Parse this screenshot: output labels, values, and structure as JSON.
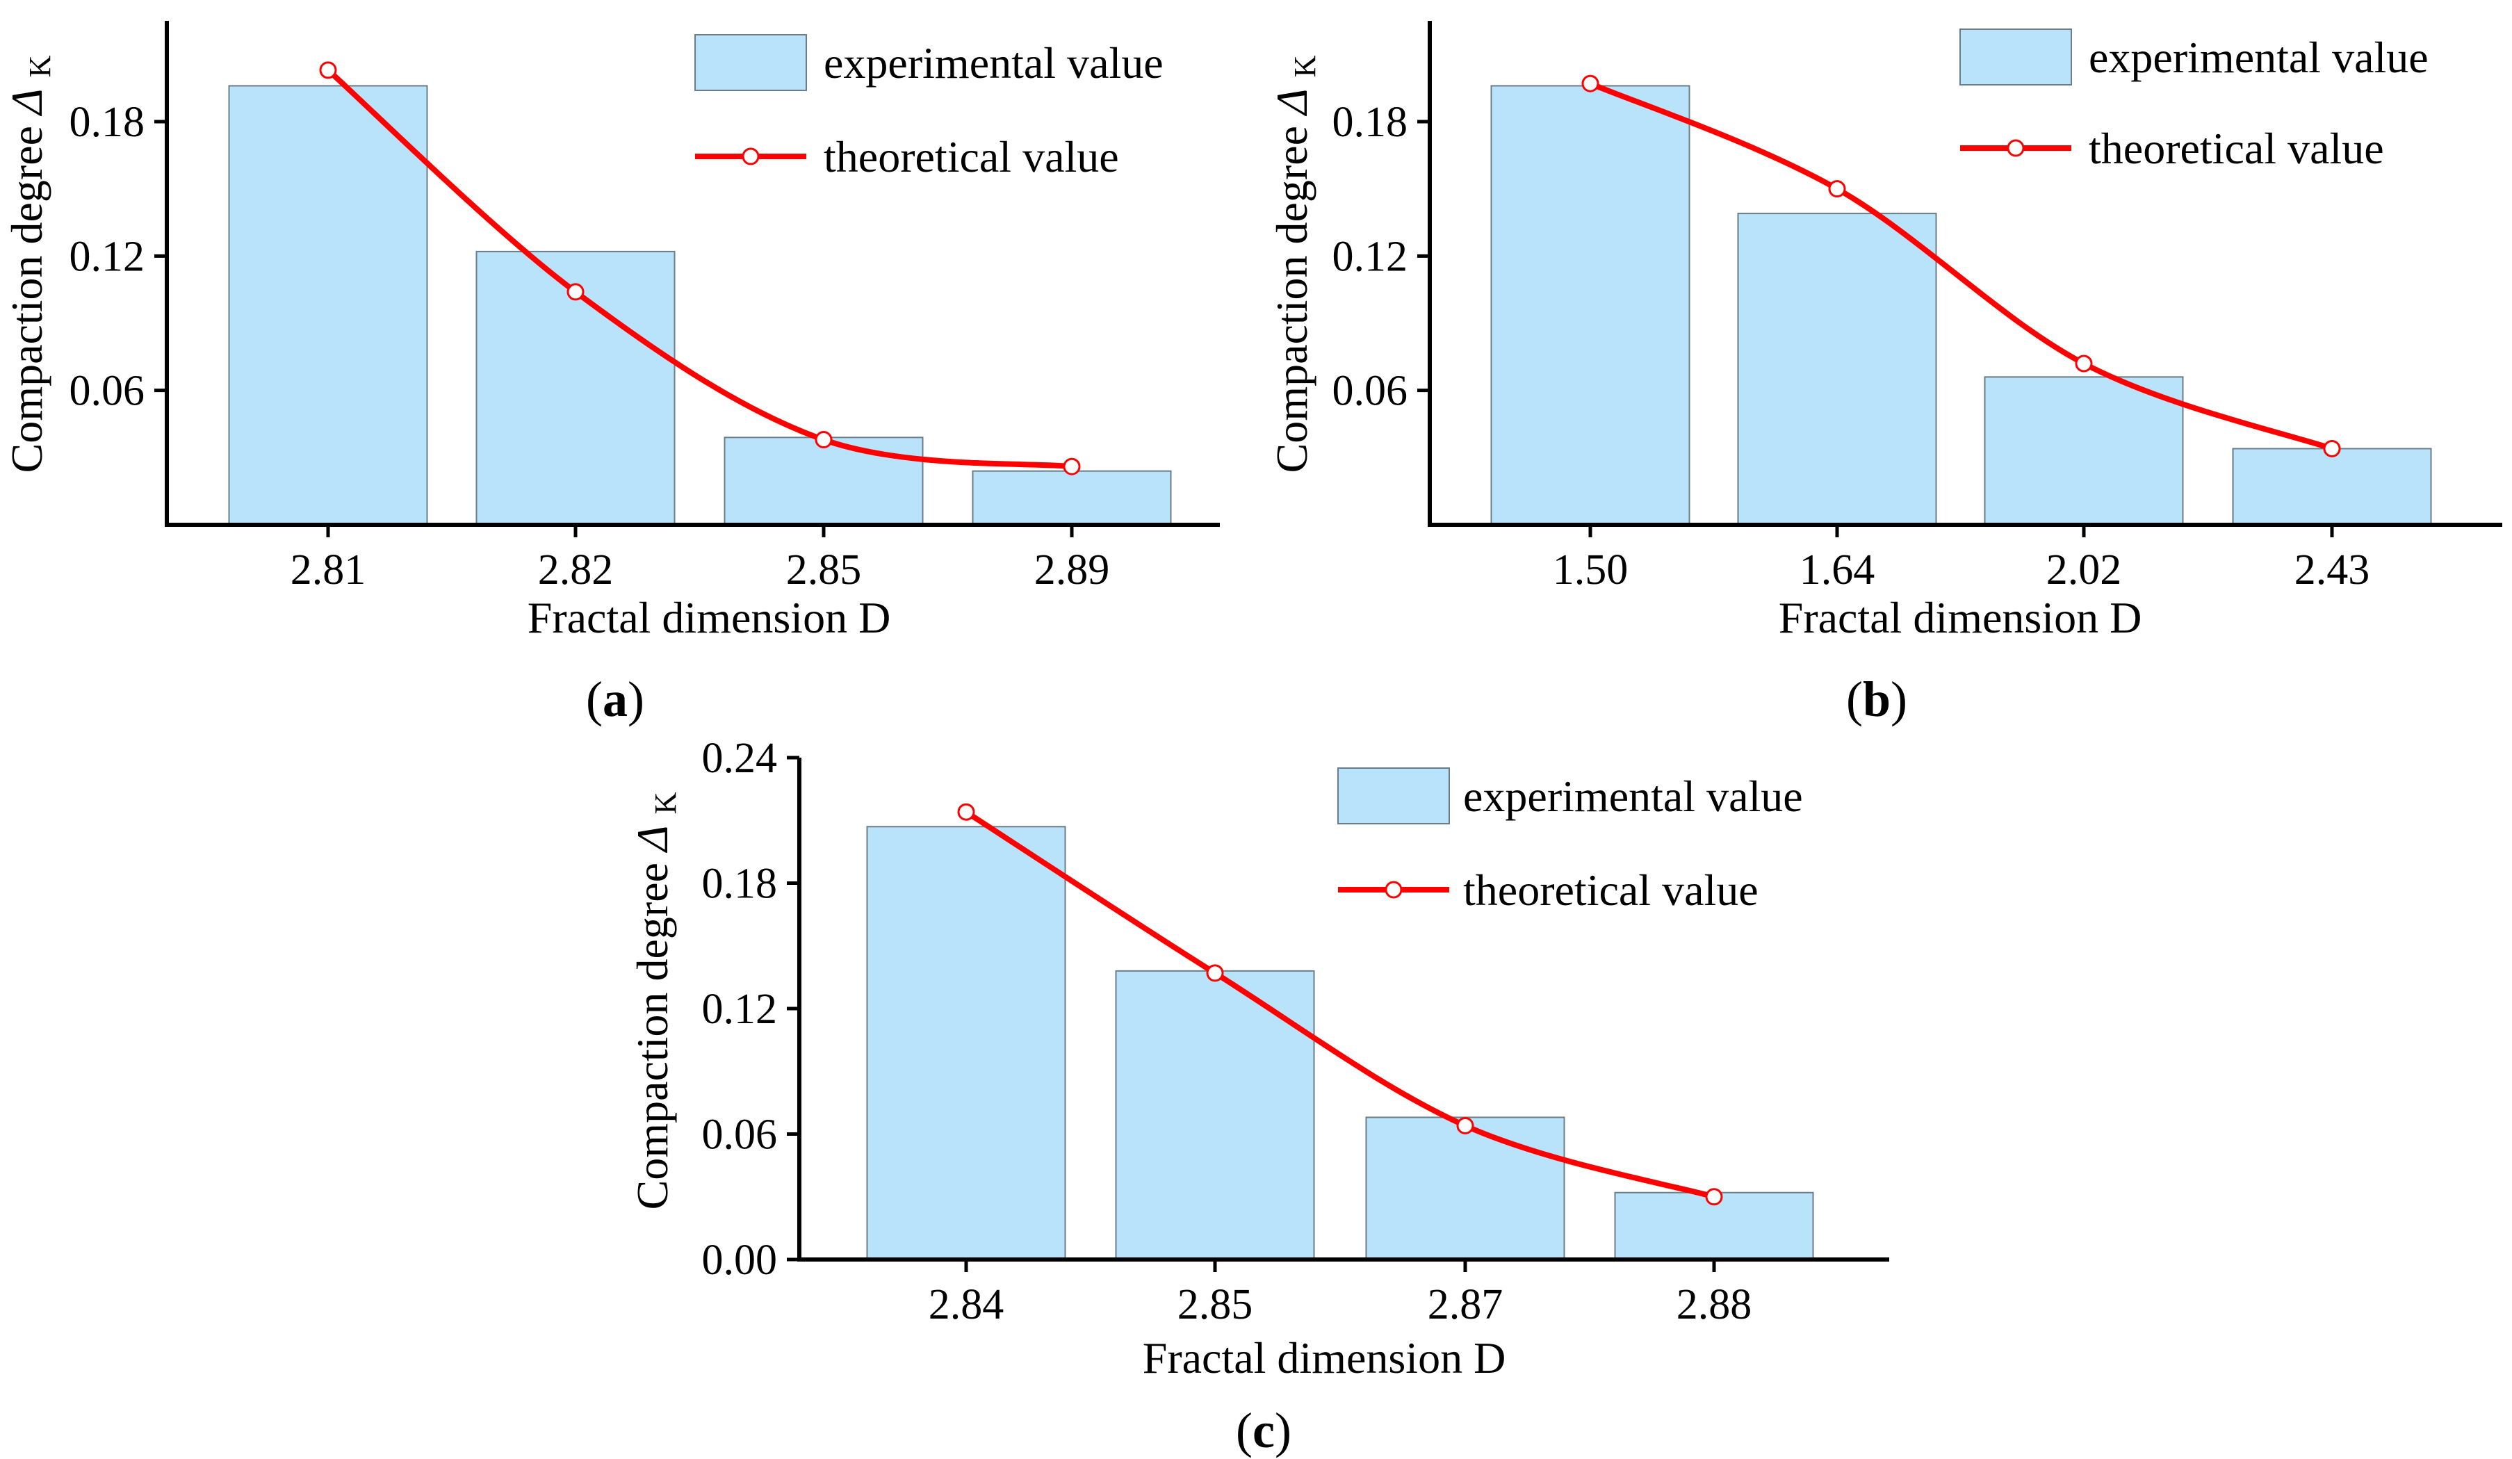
{
  "colors": {
    "bar_fill": "#b9e3fb",
    "bar_stroke": "#6b7d87",
    "line": "#ff0000",
    "marker_fill": "#ffffff",
    "axis": "#000000"
  },
  "chart_data": [
    {
      "id": "a",
      "panel_label": "a",
      "type": "bar",
      "categories": [
        "2.81",
        "2.82",
        "2.85",
        "2.89"
      ],
      "series": [
        {
          "name": "experimental value",
          "kind": "bar",
          "values": [
            0.196,
            0.122,
            0.039,
            0.024
          ]
        },
        {
          "name": "theoretical value",
          "kind": "line",
          "values": [
            0.203,
            0.104,
            0.038,
            0.026
          ]
        }
      ],
      "xlabel": "Fractal dimension D",
      "ylabel": "Compaction degree",
      "ylabel_symbol": "Δ",
      "ylabel_subscript": "K",
      "ylim": [
        0,
        0.225
      ],
      "yticks": [
        "0.06",
        "0.12",
        "0.18"
      ],
      "yticks_values": [
        0.06,
        0.12,
        0.18
      ],
      "legend_position": "top-right"
    },
    {
      "id": "b",
      "panel_label": "b",
      "type": "bar",
      "categories": [
        "1.50",
        "1.64",
        "2.02",
        "2.43"
      ],
      "series": [
        {
          "name": "experimental value",
          "kind": "bar",
          "values": [
            0.196,
            0.139,
            0.066,
            0.034
          ]
        },
        {
          "name": "theoretical value",
          "kind": "line",
          "values": [
            0.197,
            0.15,
            0.072,
            0.034
          ]
        }
      ],
      "xlabel": "Fractal dimension D",
      "ylabel": "Compaction degree",
      "ylabel_symbol": "Δ",
      "ylabel_subscript": "K",
      "ylim": [
        0,
        0.225
      ],
      "yticks": [
        "0.06",
        "0.12",
        "0.18"
      ],
      "yticks_values": [
        0.06,
        0.12,
        0.18
      ],
      "legend_position": "top-right"
    },
    {
      "id": "c",
      "panel_label": "c",
      "type": "bar",
      "categories": [
        "2.84",
        "2.85",
        "2.87",
        "2.88"
      ],
      "series": [
        {
          "name": "experimental value",
          "kind": "bar",
          "values": [
            0.207,
            0.138,
            0.068,
            0.032
          ]
        },
        {
          "name": "theoretical value",
          "kind": "line",
          "values": [
            0.214,
            0.137,
            0.064,
            0.03
          ]
        }
      ],
      "xlabel": "Fractal dimension D",
      "ylabel": "Compaction degree",
      "ylabel_symbol": "Δ",
      "ylabel_subscript": "K",
      "ylim": [
        0,
        0.24
      ],
      "yticks": [
        "0.00",
        "0.06",
        "0.12",
        "0.18",
        "0.24"
      ],
      "yticks_values": [
        0,
        0.06,
        0.12,
        0.18,
        0.24
      ],
      "legend_position": "top-right"
    }
  ]
}
